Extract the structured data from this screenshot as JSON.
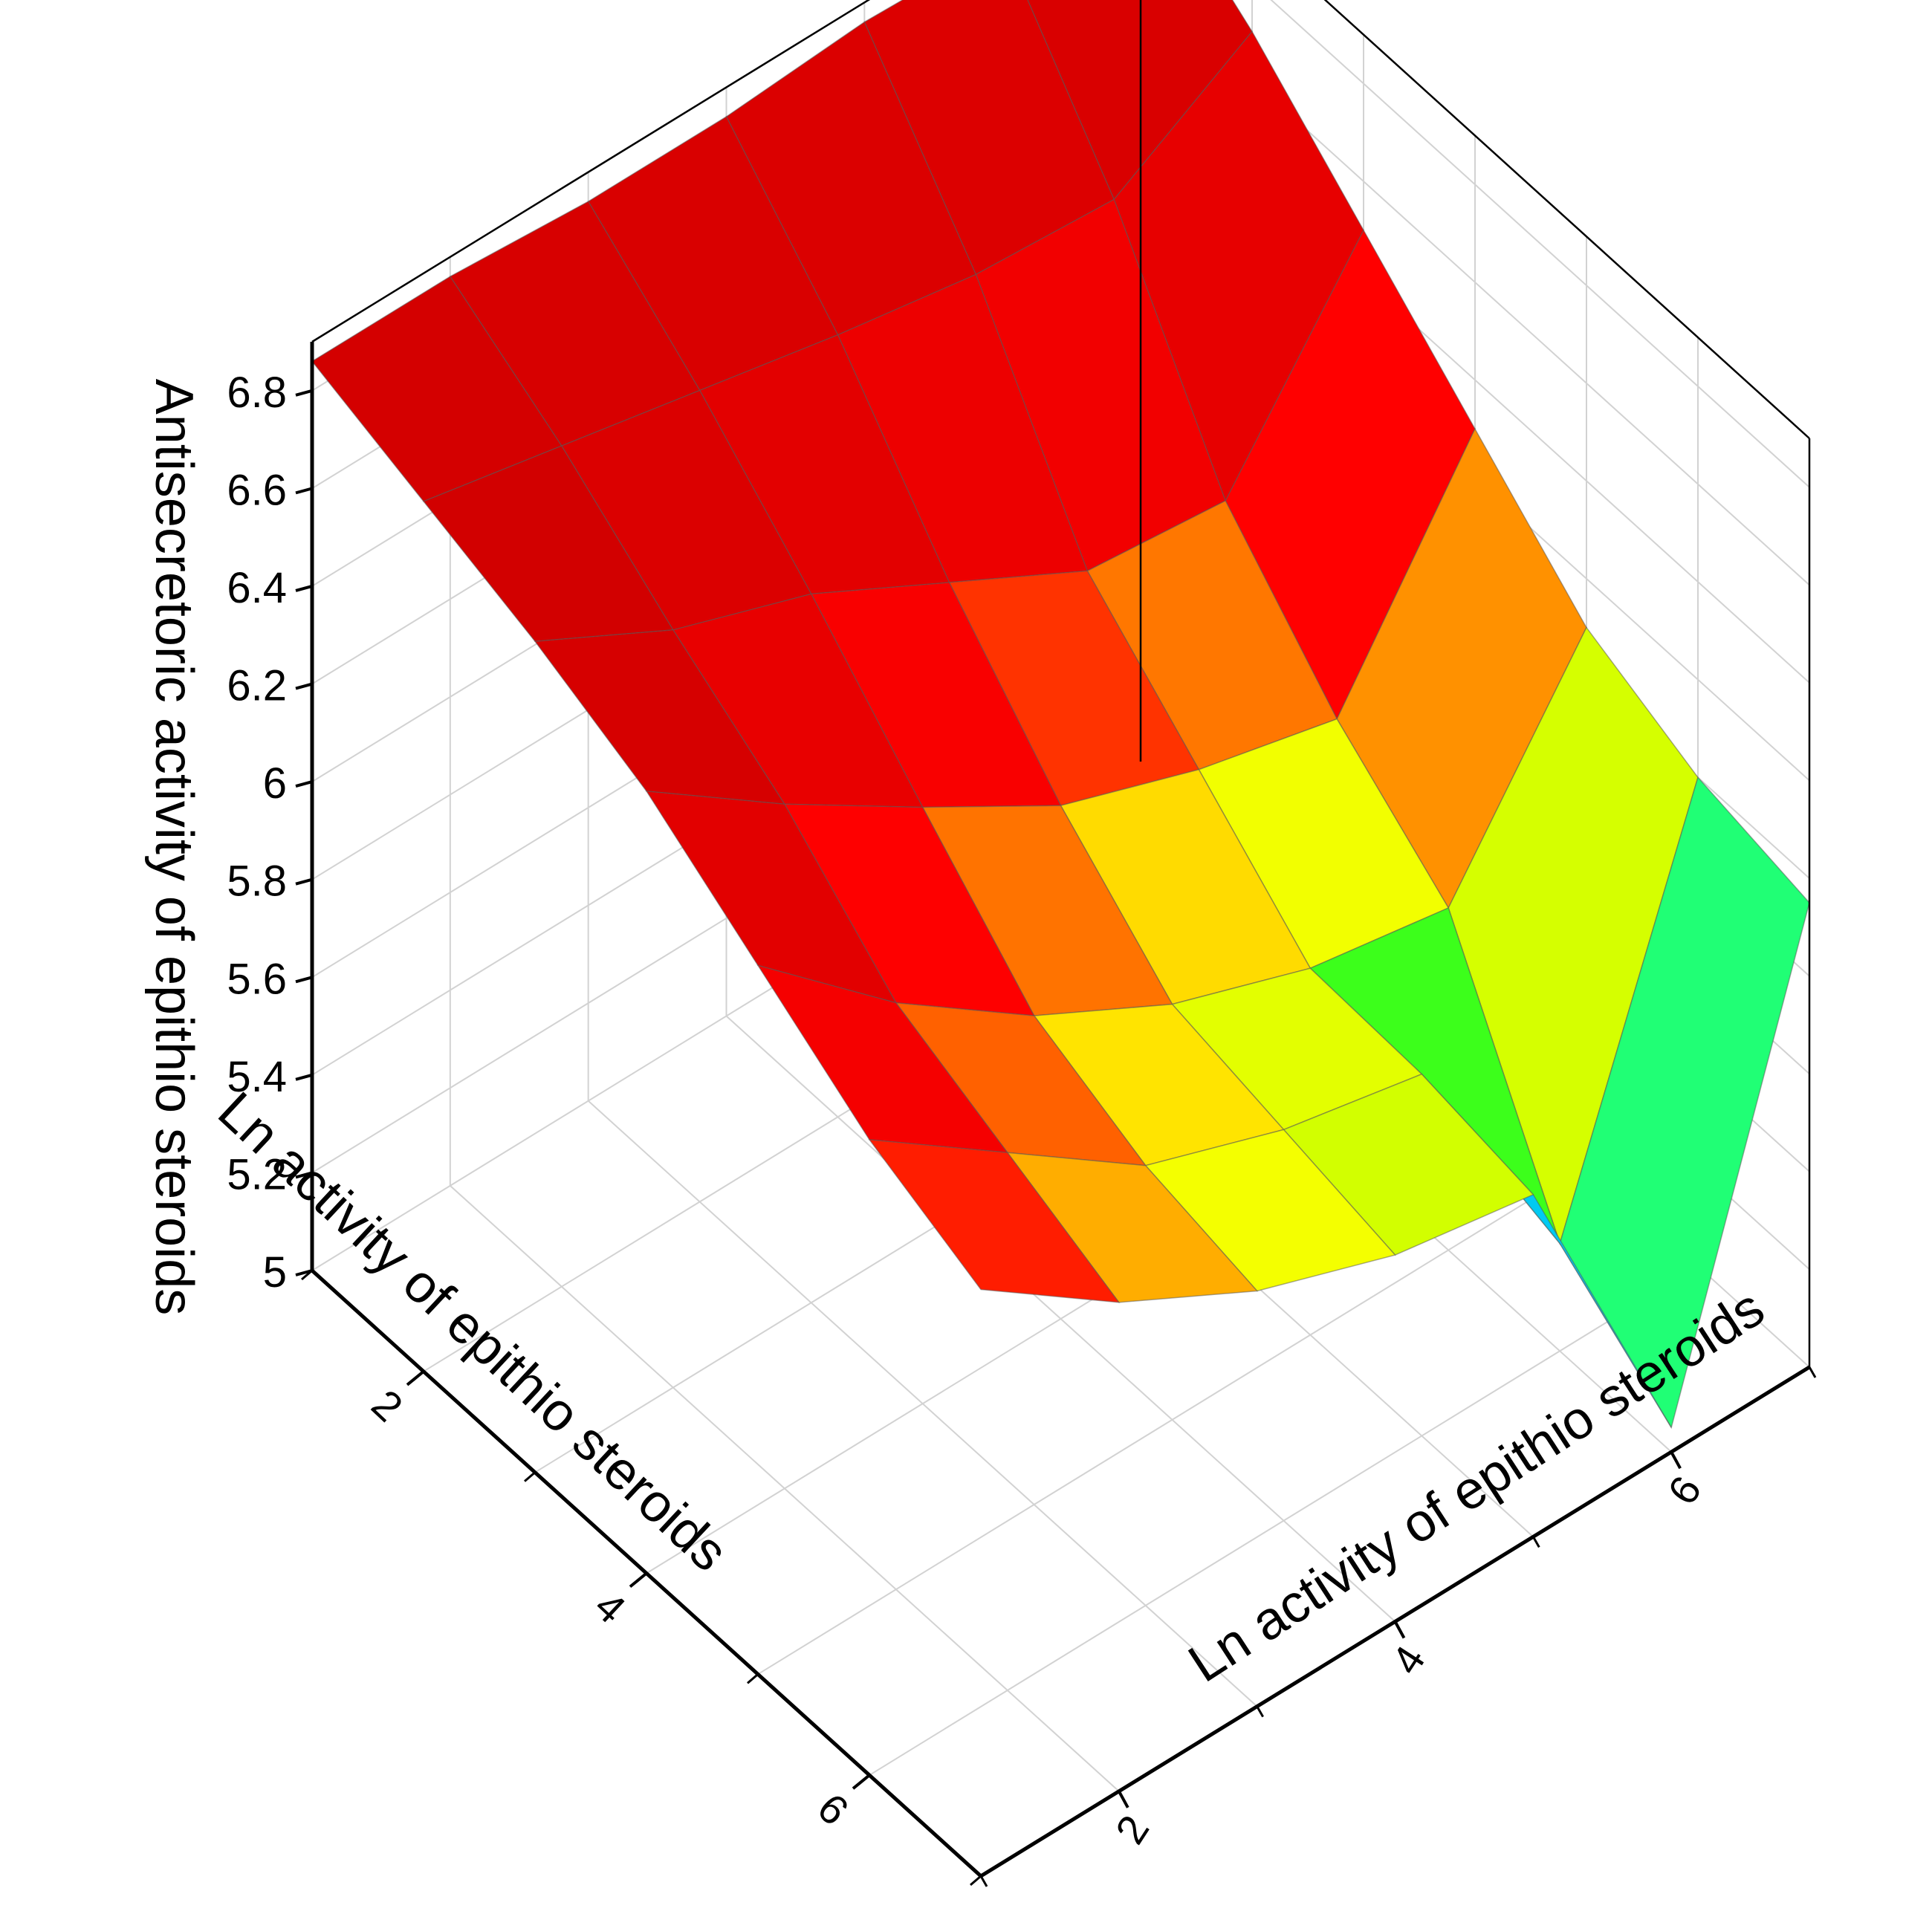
{
  "chart_data": {
    "type": "surface",
    "title": "",
    "zlabel": "Antisecretoric activity of epithio steroids",
    "xlabel": "Ln activity of epithio steroids",
    "ylabel": "Ln activity of epithio steroids",
    "zlim": [
      5,
      6.9
    ],
    "z_ticks": [
      "5",
      "5.2",
      "5.4",
      "5.6",
      "5.8",
      "6",
      "6.2",
      "6.4",
      "6.6",
      "6.8"
    ],
    "x_ticks": [
      "2",
      "4",
      "6"
    ],
    "y_ticks": [
      "2",
      "4",
      "6"
    ],
    "x_grid": [
      1,
      2,
      3,
      4,
      5,
      6,
      7
    ],
    "y_grid": [
      1,
      2,
      3,
      4,
      5,
      6,
      7
    ],
    "z": [
      [
        6.86,
        6.86,
        6.84,
        6.84,
        6.86,
        6.85,
        6.86
      ],
      [
        6.78,
        6.72,
        6.66,
        6.6,
        6.55,
        6.53,
        6.7
      ],
      [
        6.7,
        6.55,
        6.45,
        6.3,
        6.15,
        6.12,
        6.5
      ],
      [
        6.6,
        6.4,
        6.22,
        6.05,
        5.95,
        5.88,
        6.3
      ],
      [
        6.45,
        6.2,
        6.0,
        5.85,
        5.75,
        5.7,
        6.1
      ],
      [
        6.3,
        6.1,
        5.9,
        5.8,
        5.74,
        5.22,
        6.0
      ],
      [
        6.2,
        6.0,
        5.85,
        5.75,
        5.7,
        5.05,
        5.95
      ]
    ],
    "colormap": [
      "#5500cc",
      "#0022ff",
      "#00aaff",
      "#00ffdd",
      "#44ff00",
      "#ccff00",
      "#ffff00",
      "#ffaa00",
      "#ff4400",
      "#ff0000",
      "#7a0000"
    ],
    "grid": true
  }
}
